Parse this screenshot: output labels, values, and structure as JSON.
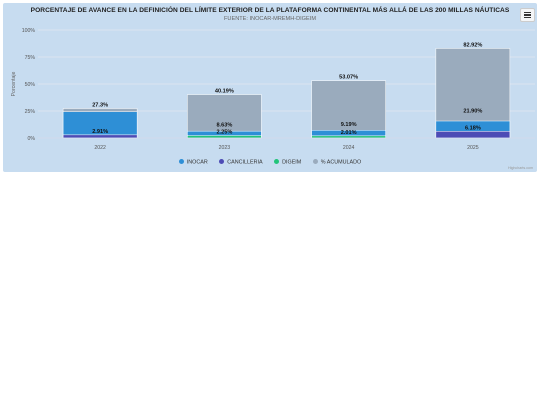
{
  "chart": {
    "title": "PORCENTAJE DE AVANCE EN LA DEFINICIÓN DEL LÍMITE EXTERIOR DE LA PLATAFORMA CONTINENTAL MÁS ALLÁ DE LAS 200 MILLAS NÁUTICAS",
    "subtitle": "FUENTE: INOCAR-MREMH-DIGEIM",
    "credits": "Highcharts.com",
    "menu_icon": "hamburger-menu-icon"
  },
  "legend_items": [
    {
      "label": "INOCAR",
      "color": "#2e8fd6"
    },
    {
      "label": "CANCILLERIA",
      "color": "#4d4bb5"
    },
    {
      "label": "DIGEIM",
      "color": "#22c47a"
    },
    {
      "label": "% ACUMULADO",
      "color": "#9aabbd"
    }
  ],
  "chart_data": {
    "type": "bar",
    "categories": [
      "2022",
      "2023",
      "2024",
      "2025"
    ],
    "series": [
      {
        "name": "INOCAR",
        "color": "#2e8fd6",
        "values": [
          24.39,
          6.33,
          7.18,
          15.72
        ]
      },
      {
        "name": "CANCILLERIA",
        "color": "#4d4bb5",
        "values": [
          2.91,
          0,
          0,
          6.18
        ]
      },
      {
        "name": "DIGEIM",
        "color": "#22c47a",
        "values": [
          0,
          2.25,
          2.01,
          0
        ]
      },
      {
        "name": "% ACUMULADO",
        "color": "#9aabbd",
        "values": [
          27.3,
          40.19,
          53.07,
          82.92
        ]
      }
    ],
    "data_labels": [
      {
        "category": "2022",
        "label": "27.3%",
        "value": 27.3
      },
      {
        "category": "2022",
        "label": "2.91%",
        "value": 2.91
      },
      {
        "category": "2023",
        "label": "40.19%",
        "value": 40.19
      },
      {
        "category": "2023",
        "label": "8.63%",
        "value": 8.63
      },
      {
        "category": "2023",
        "label": "2.25%",
        "value": 2.25
      },
      {
        "category": "2024",
        "label": "53.07%",
        "value": 53.07
      },
      {
        "category": "2024",
        "label": "9.19%",
        "value": 9.19
      },
      {
        "category": "2024",
        "label": "2.01%",
        "value": 2.01
      },
      {
        "category": "2025",
        "label": "82.92%",
        "value": 82.92
      },
      {
        "category": "2025",
        "label": "21.90%",
        "value": 21.9
      },
      {
        "category": "2025",
        "label": "6.18%",
        "value": 6.18
      }
    ],
    "ylabel": "Porcentaje",
    "xlabel": "",
    "ylim": [
      0,
      100
    ],
    "yticks": [
      0,
      25,
      50,
      75,
      100
    ],
    "ytick_labels": [
      "0%",
      "25%",
      "50%",
      "75%",
      "100%"
    ],
    "grid": true,
    "legend_position": "bottom"
  }
}
